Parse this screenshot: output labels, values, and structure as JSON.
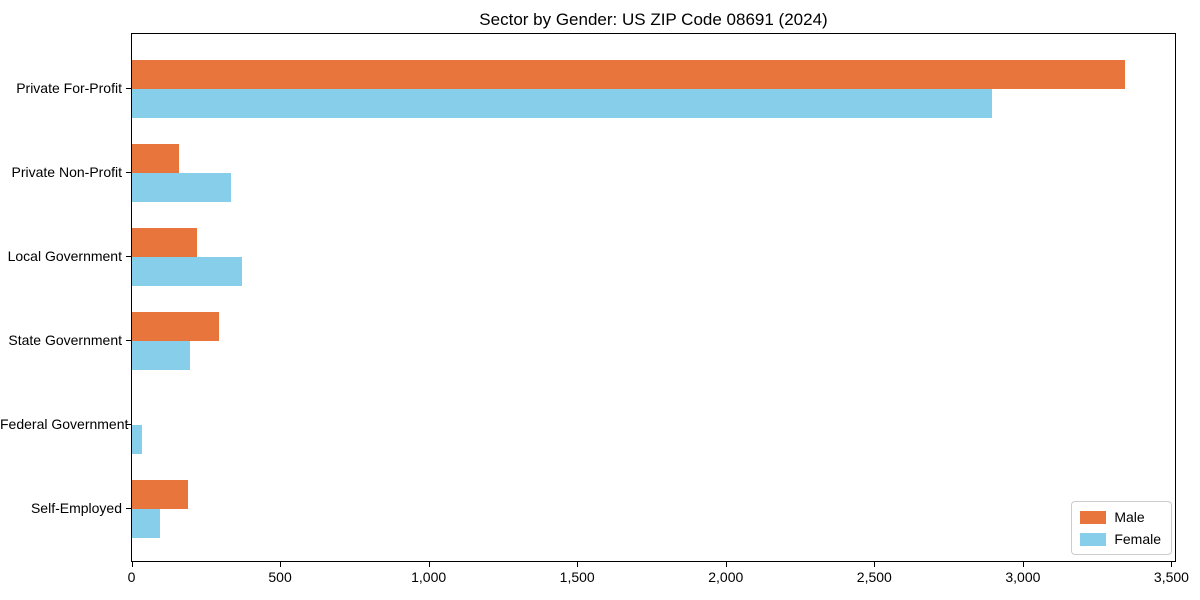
{
  "chart_data": {
    "type": "bar",
    "orientation": "horizontal",
    "title": "Sector by Gender: US ZIP Code 08691 (2024)",
    "categories": [
      "Private For-Profit",
      "Private Non-Profit",
      "Local Government",
      "State Government",
      "Federal Government",
      "Self-Employed"
    ],
    "series": [
      {
        "name": "Male",
        "color": "#E8763C",
        "values": [
          3350,
          160,
          220,
          295,
          0,
          190
        ]
      },
      {
        "name": "Female",
        "color": "#87CEEB",
        "values": [
          2900,
          335,
          370,
          195,
          35,
          95
        ]
      }
    ],
    "xlabel": "",
    "ylabel": "",
    "xlim": [
      0,
      3517
    ],
    "xticks": [
      0,
      500,
      1000,
      1500,
      2000,
      2500,
      3000,
      3500
    ],
    "xtick_labels": [
      "0",
      "500",
      "1,000",
      "1,500",
      "2,000",
      "2,500",
      "3,000",
      "3,500"
    ],
    "grid": false,
    "legend": {
      "position": "lower right",
      "items": [
        "Male",
        "Female"
      ]
    }
  },
  "colors": {
    "background": "#ffffff",
    "axis": "#000000",
    "legend_border": "#cccccc",
    "male": "#E8763C",
    "female": "#87CEEB"
  }
}
